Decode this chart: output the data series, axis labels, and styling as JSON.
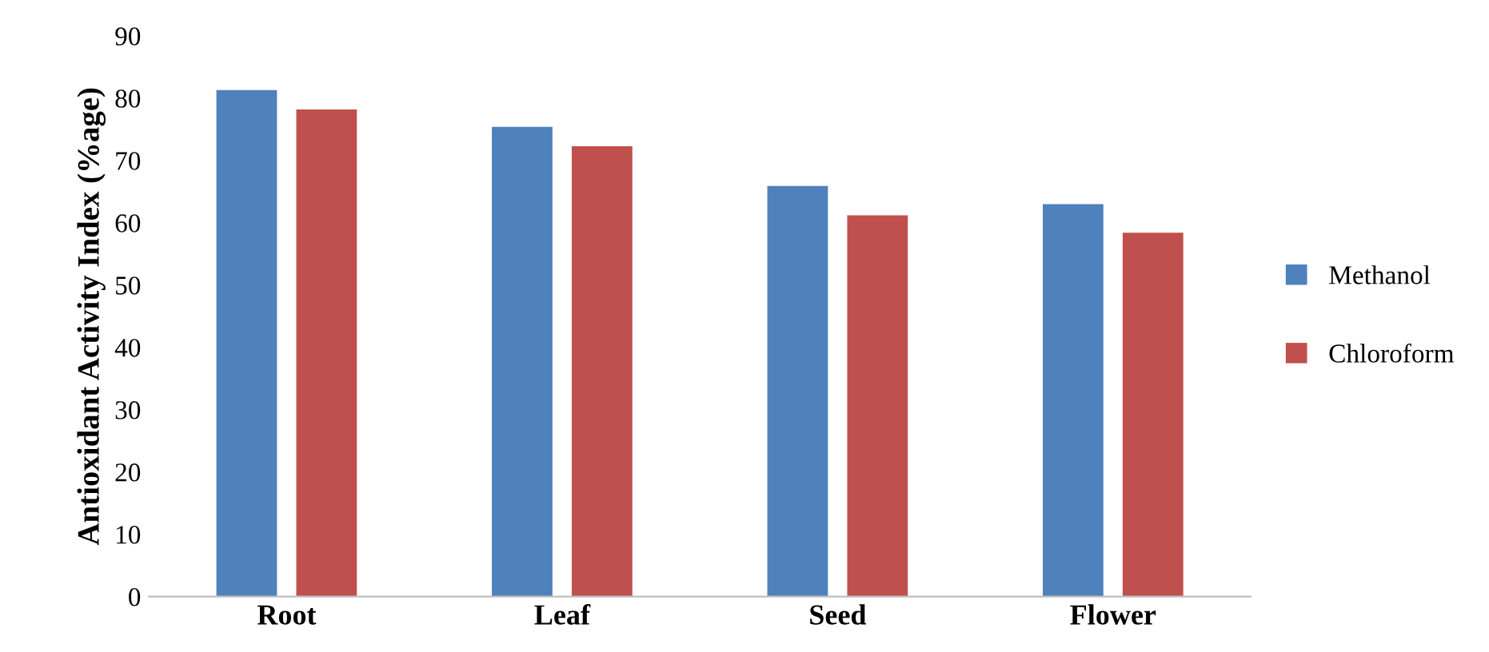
{
  "chart_data": {
    "type": "bar",
    "ylabel": "Antioxidant Activity Index (%age)",
    "categories": [
      "Root",
      "Leaf",
      "Seed",
      "Flower"
    ],
    "series": [
      {
        "name": "Methanol",
        "color": "#4f81bd",
        "values": [
          81.3,
          75.4,
          65.9,
          63.0
        ]
      },
      {
        "name": "Chloroform",
        "color": "#c0504d",
        "values": [
          78.2,
          72.3,
          61.2,
          58.4
        ]
      }
    ],
    "ylim": [
      0,
      90
    ],
    "yticks": [
      0,
      10,
      20,
      30,
      40,
      50,
      60,
      70,
      80,
      90
    ],
    "grid": false,
    "legend": "right"
  }
}
